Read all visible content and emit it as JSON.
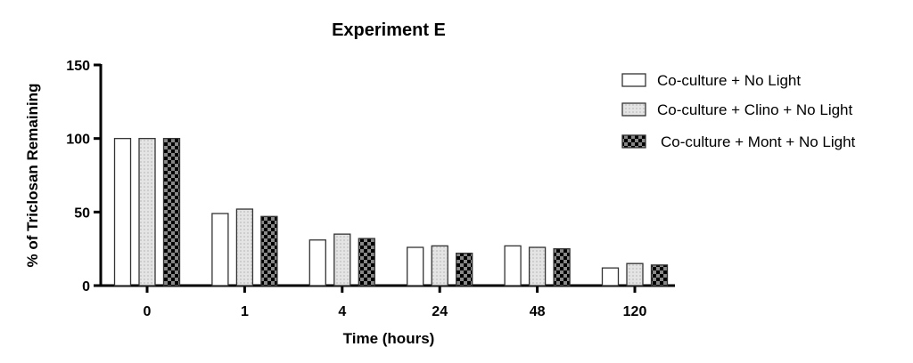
{
  "chart_data": {
    "type": "bar",
    "title": "Experiment E",
    "xlabel": "Time (hours)",
    "ylabel": "% of Triclosan Remaining",
    "ylim": [
      0,
      150
    ],
    "yticks": [
      "0",
      "50",
      "100",
      "150"
    ],
    "ytick_values": [
      0,
      50,
      100,
      150
    ],
    "categories": [
      "0",
      "1",
      "4",
      "24",
      "48",
      "120"
    ],
    "legend_position": "top-right",
    "series": [
      {
        "name": "Co-culture + No Light",
        "pattern": "white",
        "values": [
          100,
          49,
          31,
          26,
          27,
          12
        ]
      },
      {
        "name": "Co-culture + Clino + No Light",
        "pattern": "light-gray-dotted",
        "values": [
          100,
          52,
          35,
          27,
          26,
          15
        ]
      },
      {
        "name": "Co-culture + Mont + No Light",
        "pattern": "checkered",
        "values": [
          100,
          47,
          32,
          22,
          25,
          14
        ]
      }
    ]
  }
}
